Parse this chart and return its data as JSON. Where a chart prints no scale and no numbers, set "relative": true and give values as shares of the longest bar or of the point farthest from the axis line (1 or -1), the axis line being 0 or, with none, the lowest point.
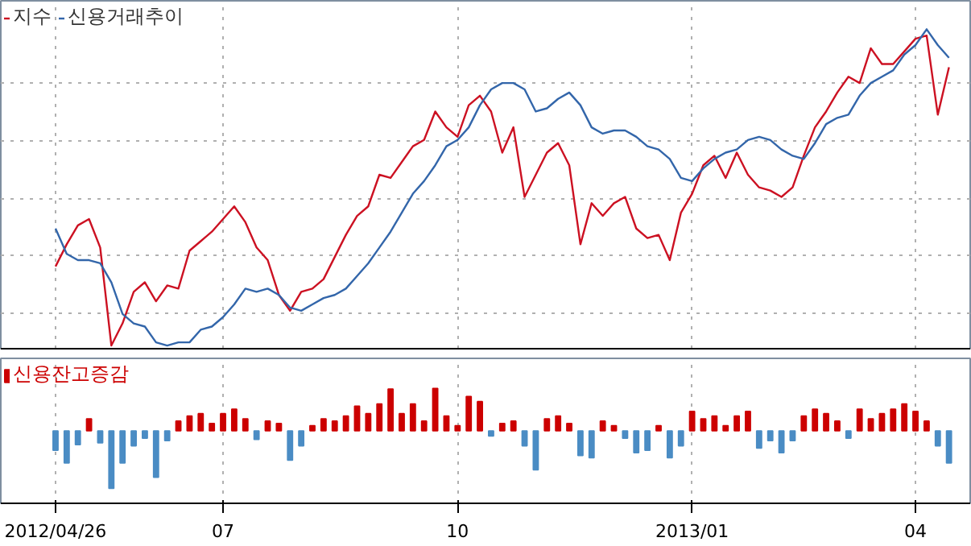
{
  "chart_data": [
    {
      "type": "line",
      "relative": true,
      "grid": true,
      "legend": "top left",
      "tick_labels": false,
      "categories": [
        "2012/04/26",
        null,
        null,
        null,
        null,
        null,
        null,
        null,
        null,
        null,
        null,
        null,
        null,
        null,
        null,
        "07",
        null,
        null,
        null,
        null,
        null,
        null,
        null,
        null,
        null,
        null,
        null,
        null,
        null,
        null,
        null,
        null,
        null,
        null,
        null,
        null,
        "10",
        null,
        null,
        null,
        null,
        null,
        null,
        null,
        null,
        null,
        null,
        null,
        null,
        null,
        null,
        null,
        null,
        null,
        null,
        null,
        null,
        "2013/01",
        null,
        null,
        null,
        null,
        null,
        null,
        null,
        null,
        null,
        null,
        null,
        null,
        null,
        null,
        null,
        null,
        null,
        null,
        null,
        "04",
        null,
        null,
        null
      ],
      "series": [
        {
          "name": "지수",
          "color": "#cc1122",
          "values": [
            0.25,
            0.32,
            0.38,
            0.4,
            0.31,
            0.0,
            0.07,
            0.17,
            0.2,
            0.14,
            0.19,
            0.18,
            0.3,
            0.33,
            0.36,
            0.4,
            0.44,
            0.39,
            0.31,
            0.27,
            0.16,
            0.11,
            0.17,
            0.18,
            0.21,
            0.28,
            0.35,
            0.41,
            0.44,
            0.54,
            0.53,
            0.58,
            0.63,
            0.65,
            0.74,
            0.69,
            0.66,
            0.76,
            0.79,
            0.74,
            0.61,
            0.69,
            0.47,
            0.54,
            0.61,
            0.64,
            0.57,
            0.32,
            0.45,
            0.41,
            0.45,
            0.47,
            0.37,
            0.34,
            0.35,
            0.27,
            0.42,
            0.48,
            0.57,
            0.6,
            0.53,
            0.61,
            0.54,
            0.5,
            0.49,
            0.47,
            0.5,
            0.6,
            0.69,
            0.74,
            0.8,
            0.85,
            0.83,
            0.94,
            0.89,
            0.89,
            0.93,
            0.97,
            0.98,
            0.73,
            0.88
          ]
        },
        {
          "name": "신용거래추이",
          "color": "#3366aa",
          "values": [
            0.37,
            0.29,
            0.27,
            0.27,
            0.26,
            0.2,
            0.1,
            0.07,
            0.06,
            0.01,
            0.0,
            0.01,
            0.01,
            0.05,
            0.06,
            0.09,
            0.13,
            0.18,
            0.17,
            0.18,
            0.16,
            0.12,
            0.11,
            0.13,
            0.15,
            0.16,
            0.18,
            0.22,
            0.26,
            0.31,
            0.36,
            0.42,
            0.48,
            0.52,
            0.57,
            0.63,
            0.65,
            0.69,
            0.76,
            0.81,
            0.83,
            0.83,
            0.81,
            0.74,
            0.75,
            0.78,
            0.8,
            0.76,
            0.69,
            0.67,
            0.68,
            0.68,
            0.66,
            0.63,
            0.62,
            0.59,
            0.53,
            0.52,
            0.56,
            0.59,
            0.61,
            0.62,
            0.65,
            0.66,
            0.65,
            0.62,
            0.6,
            0.59,
            0.64,
            0.7,
            0.72,
            0.73,
            0.79,
            0.83,
            0.85,
            0.87,
            0.92,
            0.95,
            1.0,
            0.95,
            0.91
          ]
        }
      ]
    },
    {
      "type": "bar",
      "relative": true,
      "grid": "x",
      "legend": "top left",
      "categories": [
        "2012/04/26",
        null,
        null,
        null,
        null,
        null,
        null,
        null,
        null,
        null,
        null,
        null,
        null,
        null,
        null,
        "07",
        null,
        null,
        null,
        null,
        null,
        null,
        null,
        null,
        null,
        null,
        null,
        null,
        null,
        null,
        null,
        null,
        null,
        null,
        null,
        null,
        "10",
        null,
        null,
        null,
        null,
        null,
        null,
        null,
        null,
        null,
        null,
        null,
        null,
        null,
        null,
        null,
        null,
        null,
        null,
        null,
        null,
        "2013/01",
        null,
        null,
        null,
        null,
        null,
        null,
        null,
        null,
        null,
        null,
        null,
        null,
        null,
        null,
        null,
        null,
        null,
        null,
        null,
        "04",
        null,
        null,
        null
      ],
      "series": [
        {
          "name": "신용잔고증감",
          "color": "#cc0000",
          "values": [
            -0.34,
            -0.56,
            -0.24,
            0.21,
            -0.21,
            -1.0,
            -0.56,
            -0.26,
            -0.13,
            -0.81,
            -0.17,
            0.17,
            0.26,
            0.3,
            0.13,
            0.3,
            0.38,
            0.21,
            -0.15,
            0.17,
            0.13,
            -0.51,
            -0.26,
            0.09,
            0.21,
            0.17,
            0.26,
            0.43,
            0.3,
            0.47,
            0.73,
            0.3,
            0.47,
            0.17,
            0.74,
            0.26,
            0.09,
            0.6,
            0.51,
            -0.09,
            0.13,
            0.17,
            -0.26,
            -0.68,
            0.21,
            0.26,
            0.13,
            -0.43,
            -0.47,
            0.17,
            0.09,
            -0.13,
            -0.38,
            -0.34,
            0.09,
            -0.47,
            -0.26,
            0.34,
            0.21,
            0.26,
            0.09,
            0.26,
            0.34,
            -0.3,
            -0.17,
            -0.38,
            -0.17,
            0.26,
            0.38,
            0.3,
            0.17,
            -0.13,
            0.38,
            0.21,
            0.3,
            0.38,
            0.47,
            0.34,
            0.17,
            -0.26,
            -0.56
          ],
          "colors": [
            "#4a8cc4",
            "#4a8cc4",
            "#4a8cc4",
            "#cc0000",
            "#4a8cc4",
            "#4a8cc4",
            "#4a8cc4",
            "#4a8cc4",
            "#4a8cc4",
            "#4a8cc4",
            "#4a8cc4",
            "#cc0000",
            "#cc0000",
            "#cc0000",
            "#cc0000",
            "#cc0000",
            "#cc0000",
            "#cc0000",
            "#4a8cc4",
            "#cc0000",
            "#cc0000",
            "#4a8cc4",
            "#4a8cc4",
            "#cc0000",
            "#cc0000",
            "#cc0000",
            "#cc0000",
            "#cc0000",
            "#cc0000",
            "#cc0000",
            "#cc0000",
            "#cc0000",
            "#cc0000",
            "#cc0000",
            "#cc0000",
            "#cc0000",
            "#cc0000",
            "#cc0000",
            "#cc0000",
            "#4a8cc4",
            "#cc0000",
            "#cc0000",
            "#4a8cc4",
            "#4a8cc4",
            "#cc0000",
            "#cc0000",
            "#cc0000",
            "#4a8cc4",
            "#4a8cc4",
            "#cc0000",
            "#cc0000",
            "#4a8cc4",
            "#4a8cc4",
            "#4a8cc4",
            "#cc0000",
            "#4a8cc4",
            "#4a8cc4",
            "#cc0000",
            "#cc0000",
            "#cc0000",
            "#cc0000",
            "#cc0000",
            "#cc0000",
            "#4a8cc4",
            "#4a8cc4",
            "#4a8cc4",
            "#4a8cc4",
            "#cc0000",
            "#cc0000",
            "#cc0000",
            "#cc0000",
            "#4a8cc4",
            "#cc0000",
            "#cc0000",
            "#cc0000",
            "#cc0000",
            "#cc0000",
            "#cc0000",
            "#cc0000",
            "#4a8cc4",
            "#4a8cc4"
          ]
        }
      ]
    }
  ]
}
